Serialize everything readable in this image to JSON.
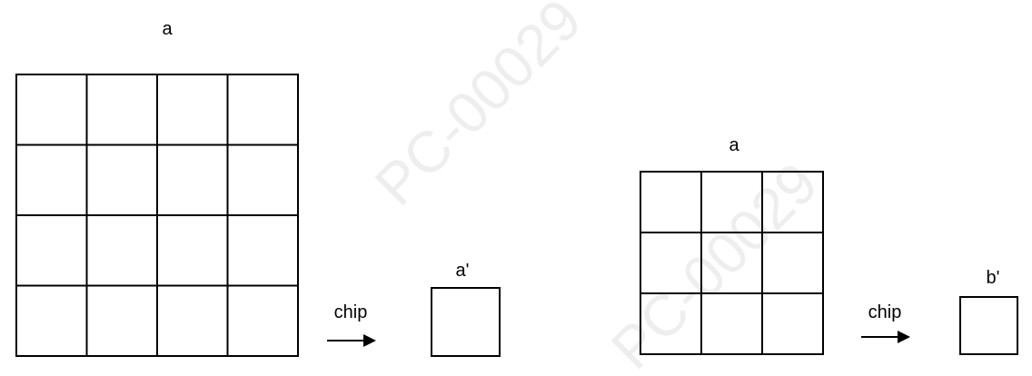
{
  "diagram": {
    "left": {
      "grid_label": "a",
      "grid_rows": 4,
      "grid_cols": 4,
      "arrow_label": "chip",
      "result_label": "a'"
    },
    "right": {
      "grid_label": "a",
      "grid_rows": 3,
      "grid_cols": 3,
      "arrow_label": "chip",
      "result_label": "b'"
    },
    "watermark": "PC-00029"
  }
}
